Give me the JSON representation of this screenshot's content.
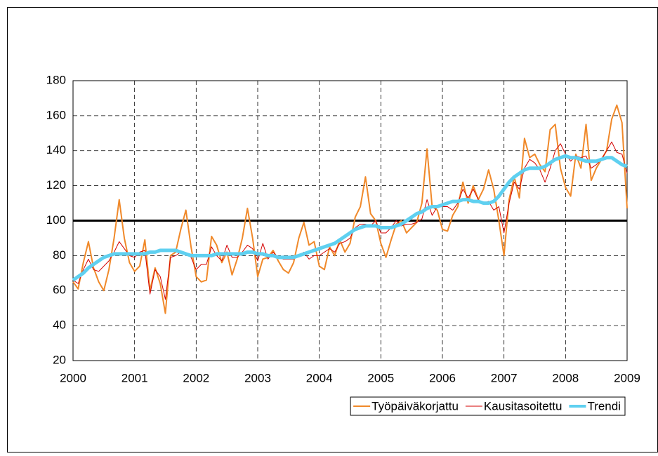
{
  "chart_data": {
    "type": "line",
    "x": [
      2000,
      2000.083,
      2000.167,
      2000.25,
      2000.333,
      2000.417,
      2000.5,
      2000.583,
      2000.667,
      2000.75,
      2000.833,
      2000.917,
      2001,
      2001.083,
      2001.167,
      2001.25,
      2001.333,
      2001.417,
      2001.5,
      2001.583,
      2001.667,
      2001.75,
      2001.833,
      2001.917,
      2002,
      2002.083,
      2002.167,
      2002.25,
      2002.333,
      2002.417,
      2002.5,
      2002.583,
      2002.667,
      2002.75,
      2002.833,
      2002.917,
      2003,
      2003.083,
      2003.167,
      2003.25,
      2003.333,
      2003.417,
      2003.5,
      2003.583,
      2003.667,
      2003.75,
      2003.833,
      2003.917,
      2004,
      2004.083,
      2004.167,
      2004.25,
      2004.333,
      2004.417,
      2004.5,
      2004.583,
      2004.667,
      2004.75,
      2004.833,
      2004.917,
      2005,
      2005.083,
      2005.167,
      2005.25,
      2005.333,
      2005.417,
      2005.5,
      2005.583,
      2005.667,
      2005.75,
      2005.833,
      2005.917,
      2006,
      2006.083,
      2006.167,
      2006.25,
      2006.333,
      2006.417,
      2006.5,
      2006.583,
      2006.667,
      2006.75,
      2006.833,
      2006.917,
      2007,
      2007.083,
      2007.167,
      2007.25,
      2007.333,
      2007.417,
      2007.5,
      2007.583,
      2007.667,
      2007.75,
      2007.833,
      2007.917,
      2008,
      2008.083,
      2008.167,
      2008.25,
      2008.333,
      2008.417,
      2008.5,
      2008.583,
      2008.667,
      2008.75,
      2008.833,
      2008.917,
      2009
    ],
    "series": [
      {
        "name": "Työpäiväkorjattu",
        "color": "#f0892a",
        "width": 2,
        "values": [
          65,
          61,
          76,
          88,
          73,
          65,
          60,
          72,
          90,
          112,
          90,
          76,
          71,
          74,
          89,
          60,
          73,
          64,
          47,
          80,
          82,
          95,
          106,
          85,
          68,
          65,
          66,
          91,
          86,
          76,
          82,
          69,
          78,
          90,
          107,
          90,
          68,
          78,
          79,
          83,
          77,
          72,
          70,
          76,
          90,
          99,
          86,
          88,
          74,
          72,
          85,
          80,
          89,
          82,
          87,
          102,
          108,
          125,
          104,
          100,
          87,
          79,
          89,
          98,
          100,
          93,
          96,
          99,
          110,
          141,
          108,
          106,
          95,
          94,
          103,
          108,
          122,
          110,
          120,
          112,
          118,
          129,
          118,
          100,
          80,
          112,
          125,
          113,
          147,
          136,
          138,
          132,
          128,
          152,
          155,
          130,
          119,
          114,
          138,
          130,
          155,
          123,
          130,
          135,
          140,
          158,
          166,
          156,
          107
        ]
      },
      {
        "name": "Kausitasoitettu",
        "color": "#d40000",
        "width": 1,
        "values": [
          66,
          64,
          72,
          78,
          72,
          71,
          74,
          77,
          82,
          88,
          84,
          80,
          79,
          82,
          83,
          58,
          72,
          68,
          55,
          79,
          80,
          82,
          81,
          79,
          72,
          75,
          75,
          85,
          80,
          77,
          86,
          79,
          79,
          82,
          86,
          84,
          77,
          87,
          78,
          82,
          79,
          78,
          78,
          78,
          80,
          82,
          78,
          80,
          80,
          82,
          84,
          82,
          87,
          88,
          90,
          96,
          98,
          98,
          97,
          100,
          93,
          93,
          96,
          100,
          97,
          98,
          98,
          99,
          101,
          112,
          103,
          108,
          108,
          108,
          106,
          110,
          118,
          113,
          118,
          112,
          110,
          111,
          106,
          108,
          93,
          110,
          122,
          118,
          130,
          135,
          133,
          129,
          122,
          130,
          140,
          144,
          138,
          134,
          137,
          136,
          137,
          130,
          132,
          135,
          140,
          145,
          139,
          138,
          127
        ]
      },
      {
        "name": "Trendi",
        "color": "#5fd0f0",
        "width": 5,
        "values": [
          66,
          68,
          70,
          73,
          75,
          77,
          79,
          80,
          81,
          81,
          81,
          81,
          81,
          81,
          81,
          82,
          82,
          83,
          83,
          83,
          83,
          82,
          81,
          80,
          80,
          80,
          80,
          80,
          81,
          81,
          81,
          81,
          81,
          81,
          82,
          82,
          81,
          81,
          80,
          80,
          79,
          79,
          79,
          79,
          80,
          81,
          82,
          83,
          84,
          85,
          86,
          87,
          89,
          91,
          93,
          95,
          96,
          97,
          97,
          97,
          96,
          96,
          96,
          97,
          98,
          100,
          102,
          104,
          105,
          107,
          108,
          108,
          109,
          110,
          111,
          111,
          112,
          112,
          111,
          111,
          110,
          110,
          111,
          114,
          118,
          122,
          125,
          127,
          129,
          130,
          130,
          130,
          131,
          133,
          135,
          136,
          137,
          136,
          136,
          135,
          134,
          134,
          134,
          135,
          136,
          136,
          134,
          132,
          131
        ]
      }
    ],
    "reference_line": 100,
    "xlim": [
      2000,
      2009
    ],
    "xticks": [
      2000,
      2001,
      2002,
      2003,
      2004,
      2005,
      2006,
      2007,
      2008,
      2009
    ],
    "ylim": [
      20,
      180
    ],
    "yticks": [
      20,
      40,
      60,
      80,
      100,
      120,
      140,
      160,
      180
    ],
    "grid": true,
    "legend": "bottom-right"
  }
}
